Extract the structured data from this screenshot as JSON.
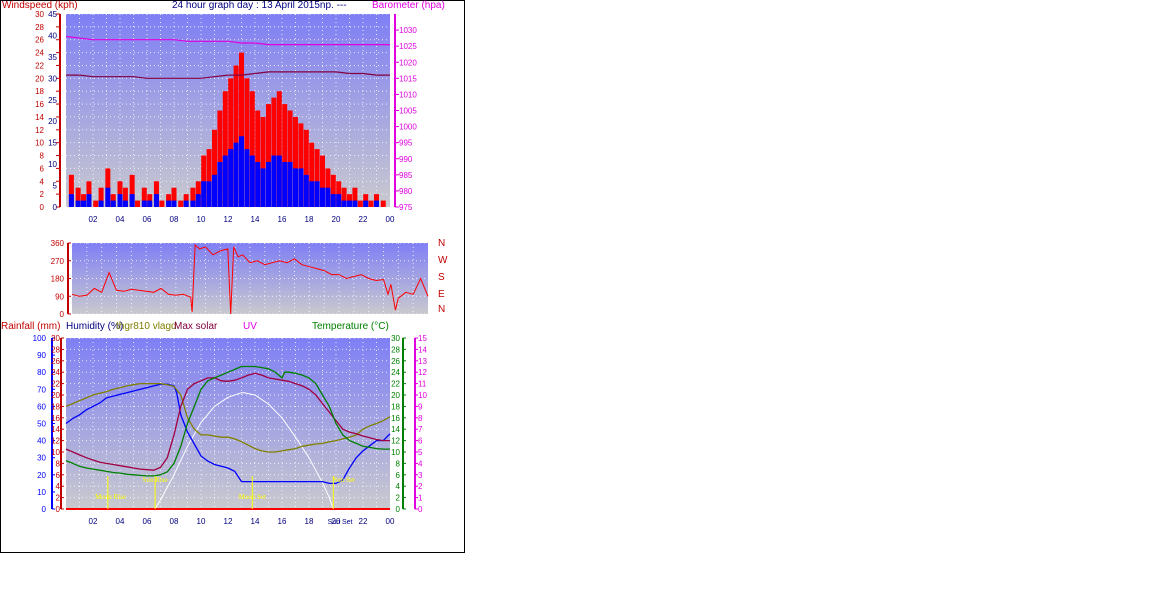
{
  "header": {
    "title": "24 hour graph day : 13 April 2015np. ---",
    "wind_label": "Windspeed (kph)",
    "baro_label": "Barometer (hpa)"
  },
  "bottom_labels": {
    "rain": "Rainfall (mm)",
    "humidity": "Humidity (%)",
    "sensor": "thgr810 vlagd",
    "solar": "Max solar",
    "uv": "UV",
    "temp": "Temperature (°C)"
  },
  "events": {
    "moon_rise": "Moon Rise",
    "sun_rise": "Sun Rise",
    "moon_set": "Moon Set",
    "sun_set": "Sun Set",
    "sun_set_axis": "Sun Set"
  },
  "compass": [
    "N",
    "W",
    "S",
    "E",
    "N"
  ],
  "x_ticks": [
    "02",
    "04",
    "06",
    "08",
    "10",
    "12",
    "14",
    "16",
    "18",
    "20",
    "22",
    "00"
  ],
  "colors": {
    "plot_top": "#7f7ff5",
    "plot_bottom": "#c9c9cf",
    "gust": "#ff0000",
    "wind": "#0000ff",
    "baro_high": "#e000e0",
    "baro_low": "#800040",
    "direction": "#ff0000",
    "humidity": "#0000ff",
    "temp": "#008000",
    "sensor": "#808000",
    "dewpoint": "#a00040",
    "solar": "#ffffff",
    "rain": "#ff0000",
    "events": "#ffff00"
  },
  "chart_data": [
    {
      "type": "bar",
      "title": "24 hour graph day : 13 April 2015np. ---",
      "ylabel": "Windspeed (kph)",
      "y2label": "Barometer (hpa)",
      "x_range_hours": [
        0,
        24
      ],
      "ylim": [
        0,
        30
      ],
      "ylim_kph": [
        0,
        45
      ],
      "y2lim": [
        975,
        1035
      ],
      "y_ticks": [
        0,
        2,
        4,
        6,
        8,
        10,
        12,
        14,
        16,
        18,
        20,
        22,
        24,
        26,
        28,
        30
      ],
      "y_ticks_kph": [
        0,
        5,
        10,
        15,
        20,
        25,
        30,
        35,
        40,
        45
      ],
      "y2_ticks": [
        975,
        980,
        985,
        990,
        995,
        1000,
        1005,
        1010,
        1015,
        1020,
        1025,
        1030
      ],
      "x_ticks": [
        "02",
        "04",
        "06",
        "08",
        "10",
        "12",
        "14",
        "16",
        "18",
        "20",
        "22",
        "00"
      ],
      "series": [
        {
          "name": "gust",
          "kind": "bars",
          "x": [
            0.4,
            0.9,
            1.3,
            1.7,
            2.2,
            2.6,
            3.1,
            3.5,
            4.0,
            4.4,
            4.9,
            5.3,
            5.8,
            6.2,
            6.7,
            7.1,
            7.6,
            8.0,
            8.5,
            8.9,
            9.4,
            9.8,
            10.2,
            10.6,
            11.0,
            11.4,
            11.8,
            12.2,
            12.6,
            13.0,
            13.4,
            13.8,
            14.2,
            14.6,
            15.0,
            15.4,
            15.8,
            16.2,
            16.6,
            17.0,
            17.4,
            17.8,
            18.2,
            18.6,
            19.0,
            19.4,
            19.8,
            20.2,
            20.6,
            21.0,
            21.4,
            21.8,
            22.2,
            22.6,
            23.0,
            23.5
          ],
          "values": [
            5,
            3,
            2,
            4,
            1,
            3,
            6,
            2,
            4,
            3,
            5,
            1,
            3,
            2,
            4,
            1,
            2,
            3,
            1,
            2,
            3,
            4,
            8,
            9,
            12,
            15,
            18,
            20,
            22,
            24,
            20,
            18,
            15,
            14,
            16,
            17,
            18,
            16,
            15,
            14,
            13,
            12,
            10,
            9,
            8,
            6,
            5,
            4,
            3,
            2,
            3,
            1,
            2,
            1,
            2,
            1
          ]
        },
        {
          "name": "wind",
          "kind": "bars",
          "x": [
            0.4,
            0.9,
            1.3,
            1.7,
            2.2,
            2.6,
            3.1,
            3.5,
            4.0,
            4.4,
            4.9,
            5.3,
            5.8,
            6.2,
            6.7,
            7.1,
            7.6,
            8.0,
            8.5,
            8.9,
            9.4,
            9.8,
            10.2,
            10.6,
            11.0,
            11.4,
            11.8,
            12.2,
            12.6,
            13.0,
            13.4,
            13.8,
            14.2,
            14.6,
            15.0,
            15.4,
            15.8,
            16.2,
            16.6,
            17.0,
            17.4,
            17.8,
            18.2,
            18.6,
            19.0,
            19.4,
            19.8,
            20.2,
            20.6,
            21.0,
            21.4,
            21.8,
            22.2,
            22.6,
            23.0,
            23.5
          ],
          "values": [
            2,
            1,
            1,
            2,
            0,
            1,
            3,
            1,
            2,
            1,
            2,
            0,
            1,
            1,
            2,
            0,
            1,
            1,
            0,
            1,
            1,
            2,
            4,
            4,
            5,
            7,
            8,
            9,
            10,
            11,
            9,
            8,
            7,
            6,
            7,
            8,
            8,
            7,
            7,
            6,
            6,
            5,
            4,
            4,
            3,
            3,
            2,
            2,
            1,
            1,
            1,
            0,
            1,
            0,
            1,
            0
          ]
        },
        {
          "name": "barometer high",
          "kind": "line",
          "axis": "y2",
          "x": [
            0,
            1,
            2,
            3,
            4,
            5,
            6,
            7,
            8,
            9,
            10,
            11,
            12,
            13,
            14,
            15,
            16,
            17,
            18,
            19,
            20,
            21,
            22,
            23,
            24
          ],
          "values": [
            1028,
            1027.5,
            1027,
            1027,
            1027,
            1027,
            1027,
            1027,
            1027,
            1026.5,
            1026.5,
            1026.5,
            1026.5,
            1026,
            1026,
            1025.5,
            1025.5,
            1025.5,
            1025.5,
            1025.5,
            1025.5,
            1025.5,
            1025.5,
            1025.5,
            1025.5
          ]
        },
        {
          "name": "barometer low",
          "kind": "line",
          "axis": "y2",
          "x": [
            0,
            1,
            2,
            3,
            4,
            5,
            6,
            7,
            8,
            9,
            10,
            11,
            12,
            13,
            14,
            15,
            16,
            17,
            18,
            19,
            20,
            21,
            22,
            23,
            24
          ],
          "values": [
            1016,
            1016,
            1015.5,
            1015.5,
            1015.5,
            1015.5,
            1015,
            1015,
            1015,
            1015,
            1015,
            1015.5,
            1016,
            1016,
            1016.5,
            1017,
            1017,
            1017,
            1017,
            1017,
            1017,
            1016.5,
            1016.5,
            1016,
            1016
          ]
        }
      ]
    },
    {
      "type": "line",
      "ylabel": "",
      "ylim": [
        0,
        360
      ],
      "y_ticks": [
        0,
        90,
        180,
        270,
        360
      ],
      "x_range_hours": [
        0,
        24
      ],
      "series": [
        {
          "name": "",
          "x": [
            0,
            0.5,
            1,
            1.5,
            2,
            2.5,
            3,
            3.5,
            4,
            4.5,
            5,
            5.5,
            6,
            6.5,
            7,
            7.5,
            8,
            8.1,
            8.3,
            8.6,
            9,
            9.5,
            10,
            10.5,
            10.7,
            10.9,
            11.2,
            11.5,
            12,
            12.5,
            13,
            13.5,
            14,
            14.5,
            15,
            15.5,
            16,
            16.5,
            17,
            17.5,
            18,
            18.5,
            19,
            19.5,
            20,
            20.5,
            21,
            21.3,
            21.5,
            21.8,
            22,
            22.5,
            23,
            23.5,
            24
          ],
          "values": [
            100,
            90,
            95,
            130,
            110,
            210,
            120,
            115,
            125,
            120,
            115,
            110,
            130,
            100,
            95,
            100,
            85,
            10,
            350,
            330,
            340,
            300,
            320,
            330,
            0,
            340,
            290,
            300,
            260,
            270,
            250,
            260,
            270,
            260,
            280,
            250,
            240,
            230,
            220,
            200,
            200,
            180,
            190,
            200,
            180,
            170,
            175,
            100,
            150,
            20,
            80,
            110,
            100,
            180,
            90
          ]
        }
      ]
    },
    {
      "type": "line",
      "x_range_hours": [
        0,
        24
      ],
      "ylim_humidity": [
        0,
        100
      ],
      "ylim_rain": [
        0,
        30
      ],
      "ylim_temp": [
        0,
        30
      ],
      "ylim_uv": [
        0,
        15
      ],
      "y_ticks_humidity": [
        0,
        10,
        20,
        30,
        40,
        50,
        60,
        70,
        80,
        90,
        100
      ],
      "y_ticks_rain": [
        0,
        2,
        4,
        6,
        8,
        10,
        12,
        14,
        16,
        18,
        20,
        22,
        24,
        26,
        28,
        30
      ],
      "y_ticks_temp": [
        0,
        2,
        4,
        6,
        8,
        10,
        12,
        14,
        16,
        18,
        20,
        22,
        24,
        26,
        28,
        30
      ],
      "y_ticks_uv": [
        0,
        1,
        2,
        3,
        4,
        5,
        6,
        7,
        8,
        9,
        10,
        11,
        12,
        13,
        14,
        15
      ],
      "series": [
        {
          "name": "Humidity (%)",
          "axis": "humidity",
          "x": [
            0,
            0.5,
            1,
            1.5,
            2,
            2.5,
            3,
            3.5,
            4,
            4.5,
            5,
            5.5,
            6,
            6.5,
            7,
            7.5,
            8,
            8.2,
            8.5,
            9,
            9.5,
            10,
            10.5,
            11,
            11.5,
            12,
            12.5,
            13,
            13.5,
            14,
            14.5,
            15,
            15.5,
            16,
            16.5,
            17,
            17.5,
            18,
            18.5,
            19,
            19.5,
            20,
            20.5,
            21,
            21.5,
            22,
            22.5,
            23,
            23.5,
            24
          ],
          "values": [
            50,
            53,
            55,
            58,
            60,
            62,
            65,
            66,
            67,
            68,
            69,
            70,
            71,
            72,
            73,
            73,
            72,
            68,
            55,
            45,
            38,
            31,
            28,
            26,
            25,
            24,
            22,
            16,
            16,
            16,
            16,
            16,
            16,
            16,
            16,
            16,
            16,
            16,
            16,
            16,
            15,
            15,
            17,
            24,
            30,
            34,
            37,
            40,
            40,
            44
          ]
        },
        {
          "name": "Temperature (°C)",
          "axis": "temp",
          "x": [
            0,
            0.5,
            1,
            1.5,
            2,
            2.5,
            3,
            3.5,
            4,
            4.5,
            5,
            5.5,
            6,
            6.5,
            7,
            7.5,
            8,
            8.5,
            9,
            9.5,
            10,
            10.5,
            11,
            11.5,
            12,
            12.5,
            13,
            13.5,
            14,
            14.5,
            15,
            15.5,
            16,
            16.2,
            16.5,
            17,
            17.5,
            18,
            18.5,
            19,
            19.5,
            20,
            20.5,
            21,
            21.5,
            22,
            22.5,
            23,
            23.5,
            24
          ],
          "values": [
            8.5,
            8,
            7.5,
            7.2,
            7,
            6.8,
            6.6,
            6.4,
            6.3,
            6.1,
            6,
            5.9,
            5.8,
            5.8,
            6,
            6.5,
            8,
            11,
            15,
            18,
            21,
            22.5,
            23,
            23.5,
            24,
            24.5,
            25,
            25,
            25,
            24.8,
            24.6,
            24,
            23,
            24,
            24,
            23.8,
            23.5,
            23,
            22,
            20,
            18,
            15,
            13,
            12,
            11.5,
            11,
            10.8,
            10.6,
            10.5,
            10.5
          ]
        },
        {
          "name": "thgr810 vlagd",
          "axis": "temp",
          "x": [
            0,
            0.5,
            1,
            1.5,
            2,
            2.5,
            3,
            3.5,
            4,
            4.5,
            5,
            5.5,
            6,
            6.5,
            7,
            7.5,
            8,
            8.5,
            9,
            9.5,
            10,
            10.5,
            11,
            11.5,
            12,
            12.5,
            13,
            13.5,
            14,
            14.5,
            15,
            15.5,
            16,
            16.5,
            17,
            17.5,
            18,
            18.5,
            19,
            19.5,
            20,
            20.5,
            21,
            21.5,
            22,
            22.5,
            23,
            23.5,
            24
          ],
          "values": [
            18,
            18.5,
            19,
            19.5,
            20,
            20.3,
            20.6,
            21,
            21.3,
            21.6,
            21.8,
            22,
            22,
            22,
            22,
            21.8,
            21.5,
            20,
            16,
            14,
            13,
            13,
            12.8,
            12.6,
            12.6,
            12.3,
            11.8,
            11.2,
            10.6,
            10.2,
            10,
            10,
            10.2,
            10.4,
            10.6,
            11,
            11.2,
            11.4,
            11.5,
            11.8,
            12,
            12.3,
            12.6,
            13,
            14,
            14.6,
            15,
            15.5,
            16.2
          ]
        },
        {
          "name": "dewpoint",
          "axis": "temp",
          "x": [
            0,
            0.5,
            1,
            1.5,
            2,
            2.5,
            3,
            3.5,
            4,
            4.5,
            5,
            5.5,
            6,
            6.5,
            7,
            7.5,
            8,
            8.5,
            9,
            9.5,
            10,
            10.5,
            11,
            11.5,
            12,
            12.5,
            13,
            13.5,
            14,
            14.5,
            15,
            15.5,
            16,
            16.5,
            17,
            17.5,
            18,
            18.5,
            19,
            19.5,
            20,
            20.5,
            21,
            21.5,
            22,
            22.5,
            23,
            23.5,
            24
          ],
          "values": [
            10.5,
            10,
            9.5,
            9,
            8.6,
            8.2,
            8,
            7.8,
            7.6,
            7.4,
            7.2,
            7,
            6.9,
            6.8,
            7.3,
            9,
            13,
            18,
            21,
            22,
            22.5,
            23,
            23,
            22.5,
            22.4,
            22.6,
            23,
            23.5,
            23.8,
            23.5,
            23,
            22.8,
            22.6,
            22.4,
            22,
            21.6,
            21,
            20,
            18.5,
            17,
            15.5,
            14,
            13.5,
            13.2,
            12.8,
            12.5,
            12.2,
            12,
            12
          ]
        },
        {
          "name": "Max solar",
          "axis": "uv",
          "x": [
            6.6,
            7,
            8,
            9,
            10,
            11,
            12,
            13,
            13.2,
            14,
            15,
            16,
            17,
            18,
            19,
            19.5,
            19.8
          ],
          "values": [
            0,
            0.8,
            3,
            5.5,
            7.6,
            9,
            9.8,
            10.2,
            10.2,
            10,
            9.2,
            8,
            6.3,
            4.5,
            2.3,
            1,
            0
          ]
        },
        {
          "name": "Rainfall (mm)",
          "axis": "rain",
          "x": [
            0,
            24
          ],
          "values": [
            0,
            0
          ]
        }
      ]
    }
  ]
}
